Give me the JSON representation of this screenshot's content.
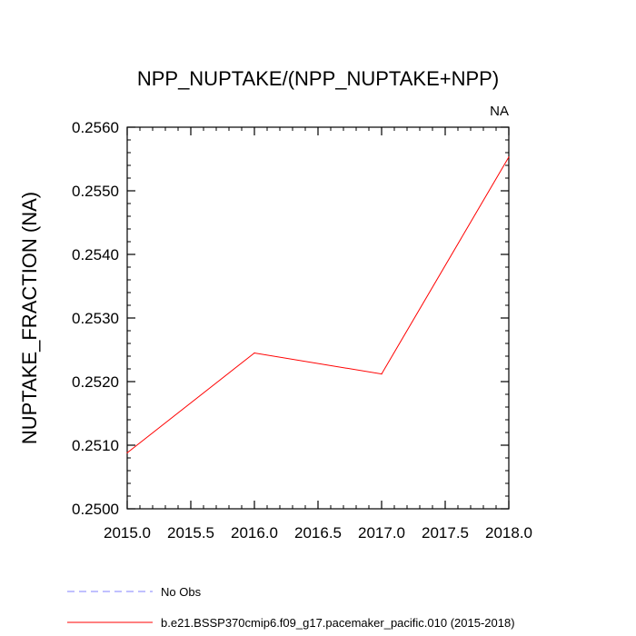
{
  "chart_data": {
    "type": "line",
    "title": "NPP_NUPTAKE/(NPP_NUPTAKE+NPP)",
    "subtitle": "NA",
    "xlabel": "",
    "ylabel": "NUPTAKE_FRACTION  (NA)",
    "xlim": [
      2015.0,
      2018.0
    ],
    "ylim": [
      0.25,
      0.256
    ],
    "x_ticks": [
      2015.0,
      2015.5,
      2016.0,
      2016.5,
      2017.0,
      2017.5,
      2018.0
    ],
    "x_tick_labels": [
      "2015.0",
      "2015.5",
      "2016.0",
      "2016.5",
      "2017.0",
      "2017.5",
      "2018.0"
    ],
    "y_ticks": [
      0.25,
      0.251,
      0.252,
      0.253,
      0.254,
      0.255,
      0.256
    ],
    "y_tick_labels": [
      "0.2500",
      "0.2510",
      "0.2520",
      "0.2530",
      "0.2540",
      "0.2550",
      "0.2560"
    ],
    "grid": false,
    "legend_position": "bottom",
    "series": [
      {
        "name": "No Obs",
        "color": "#8080ff",
        "style": "dashed",
        "x": [],
        "values": []
      },
      {
        "name": "b.e21.BSSP370cmip6.f09_g17.pacemaker_pacific.010 (2015-2018)",
        "color": "#ff0000",
        "style": "solid",
        "x": [
          2015.0,
          2016.0,
          2017.0,
          2018.0
        ],
        "values": [
          0.25088,
          0.25245,
          0.25212,
          0.25553
        ]
      }
    ]
  }
}
